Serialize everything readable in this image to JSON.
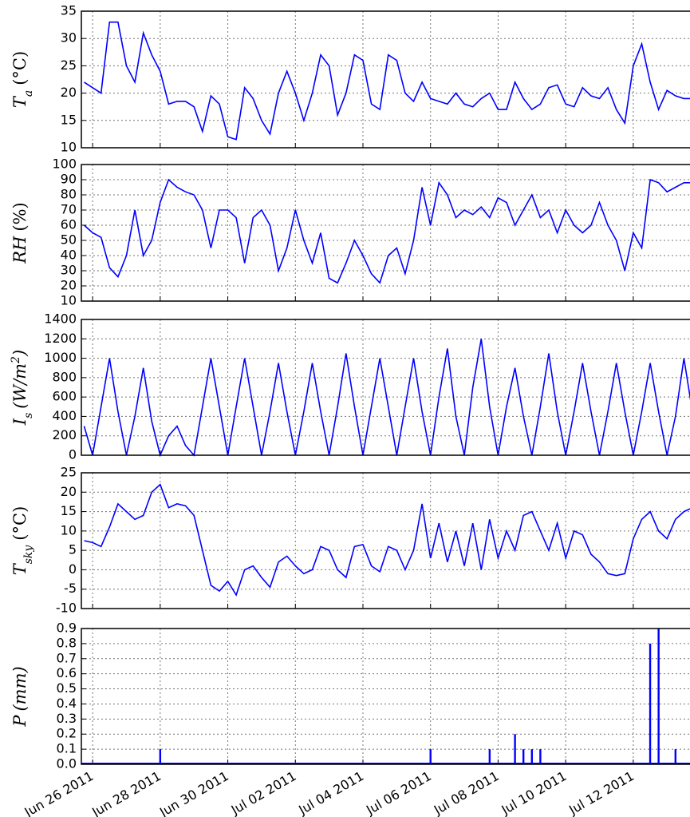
{
  "chart_data": [
    {
      "type": "line",
      "color": "#0000ff",
      "grid": true,
      "ylabel": [
        {
          "text": "T",
          "style": "base"
        },
        {
          "text": "a",
          "style": "sub"
        },
        {
          "text": "(°C)",
          "style": "unit"
        }
      ],
      "ylim": [
        10,
        35
      ],
      "yticks": [
        10,
        15,
        20,
        25,
        30,
        35
      ],
      "values": [
        22,
        21,
        20,
        33,
        33,
        25,
        22,
        31,
        27,
        24,
        18,
        18.5,
        18.5,
        17.5,
        13,
        19.5,
        18,
        12,
        11.5,
        21,
        19,
        15,
        12.5,
        20,
        24,
        20,
        15,
        20,
        27,
        25,
        16,
        20,
        27,
        26,
        18,
        17,
        27,
        26,
        20,
        18.5,
        22,
        19,
        18.5,
        18,
        20,
        18,
        17.5,
        19,
        20,
        17,
        17,
        22,
        19,
        17,
        18,
        21,
        21.5,
        18,
        17.5,
        21,
        19.5,
        19,
        21,
        17,
        14.5,
        25,
        29,
        22,
        17,
        20.5,
        19.5,
        19,
        19
      ]
    },
    {
      "type": "line",
      "color": "#0000ff",
      "grid": true,
      "ylabel": [
        {
          "text": "RH",
          "style": "base"
        },
        {
          "text": "(%)",
          "style": "unit"
        }
      ],
      "ylim": [
        10,
        100
      ],
      "yticks": [
        10,
        20,
        30,
        40,
        50,
        60,
        70,
        80,
        90,
        100
      ],
      "values": [
        60,
        55,
        52,
        32,
        26,
        40,
        70,
        40,
        50,
        75,
        90,
        85,
        82,
        80,
        70,
        45,
        70,
        70,
        65,
        35,
        65,
        70,
        60,
        30,
        45,
        70,
        50,
        35,
        55,
        25,
        22,
        35,
        50,
        40,
        28,
        22,
        40,
        45,
        28,
        50,
        85,
        60,
        88,
        80,
        65,
        70,
        67,
        72,
        65,
        78,
        75,
        60,
        70,
        80,
        65,
        70,
        55,
        70,
        60,
        55,
        60,
        75,
        60,
        50,
        30,
        55,
        45,
        90,
        88,
        82,
        85,
        88,
        88
      ]
    },
    {
      "type": "line",
      "color": "#0000ff",
      "grid": true,
      "ylabel": [
        {
          "text": "I",
          "style": "base"
        },
        {
          "text": "s",
          "style": "sub"
        },
        {
          "text": "(W/m",
          "style": "base"
        },
        {
          "text": "2",
          "style": "sup"
        },
        {
          "text": ")",
          "style": "base"
        }
      ],
      "ylim": [
        0,
        1400
      ],
      "yticks": [
        0,
        200,
        400,
        600,
        800,
        1000,
        1200,
        1400
      ],
      "values": [
        300,
        0,
        500,
        1000,
        450,
        0,
        400,
        900,
        350,
        0,
        200,
        300,
        100,
        0,
        500,
        1000,
        500,
        0,
        500,
        1000,
        500,
        0,
        450,
        950,
        450,
        0,
        450,
        950,
        450,
        0,
        500,
        1050,
        500,
        0,
        500,
        1000,
        500,
        0,
        500,
        1000,
        450,
        0,
        600,
        1100,
        400,
        0,
        700,
        1200,
        500,
        0,
        500,
        900,
        400,
        0,
        500,
        1050,
        450,
        0,
        450,
        950,
        450,
        0,
        450,
        950,
        450,
        0,
        450,
        950,
        450,
        0,
        400,
        1000,
        450
      ]
    },
    {
      "type": "line",
      "color": "#0000ff",
      "grid": true,
      "ylabel": [
        {
          "text": "T",
          "style": "base"
        },
        {
          "text": "sky",
          "style": "sub"
        },
        {
          "text": "(°C)",
          "style": "unit"
        }
      ],
      "ylim": [
        -10,
        25
      ],
      "yticks": [
        -10,
        -5,
        0,
        5,
        10,
        15,
        20,
        25
      ],
      "values": [
        7.5,
        7,
        6,
        11,
        17,
        15,
        13,
        14,
        20,
        22,
        16,
        17,
        16.5,
        14,
        5,
        -4,
        -5.5,
        -3,
        -6.5,
        0,
        1,
        -2,
        -4.5,
        2,
        3.5,
        1,
        -1,
        0,
        6,
        5,
        0,
        -2,
        6,
        6.5,
        1,
        -0.5,
        6,
        5,
        0,
        5,
        17,
        3,
        12,
        2,
        10,
        1,
        12,
        0,
        13,
        3,
        10,
        5,
        14,
        15,
        10,
        5,
        12,
        3,
        10,
        9,
        4,
        2,
        -1,
        -1.5,
        -1,
        8,
        13,
        15,
        10,
        8,
        13,
        15,
        16
      ]
    },
    {
      "type": "bar",
      "color": "#0000ff",
      "grid": true,
      "ylabel": [
        {
          "text": "P",
          "style": "base"
        },
        {
          "text": "(mm)",
          "style": "base"
        }
      ],
      "ylim": [
        0,
        0.9
      ],
      "yticks": [
        {
          "value": 0,
          "label": "0.0"
        },
        0.1,
        0.2,
        0.3,
        0.4,
        0.5,
        0.6,
        0.7,
        0.8,
        0.9
      ],
      "xlim": [
        "2011-06-25 16:00",
        "2011-07-13 18:00"
      ],
      "xticks": [
        {
          "value": "2011-06-26 00:00",
          "label": "Jun 26 2011"
        },
        {
          "value": "2011-06-28 00:00",
          "label": "Jun 28 2011"
        },
        {
          "value": "2011-06-30 00:00",
          "label": "Jun 30 2011"
        },
        {
          "value": "2011-07-02 00:00",
          "label": "Jul 02 2011"
        },
        {
          "value": "2011-07-04 00:00",
          "label": "Jul 04 2011"
        },
        {
          "value": "2011-07-06 00:00",
          "label": "Jul 06 2011"
        },
        {
          "value": "2011-07-08 00:00",
          "label": "Jul 08 2011"
        },
        {
          "value": "2011-07-10 00:00",
          "label": "Jul 10 2011"
        },
        {
          "value": "2011-07-12 00:00",
          "label": "Jul 12 2011"
        }
      ],
      "x": [
        "2011-06-25 18:00",
        "2011-06-26 00:00",
        "2011-06-26 06:00",
        "2011-06-26 12:00",
        "2011-06-26 18:00",
        "2011-06-27 00:00",
        "2011-06-27 06:00",
        "2011-06-27 12:00",
        "2011-06-27 18:00",
        "2011-06-28 00:00",
        "2011-06-28 06:00",
        "2011-06-28 12:00",
        "2011-06-28 18:00",
        "2011-06-29 00:00",
        "2011-06-29 06:00",
        "2011-06-29 12:00",
        "2011-06-29 18:00",
        "2011-06-30 00:00",
        "2011-06-30 06:00",
        "2011-06-30 12:00",
        "2011-06-30 18:00",
        "2011-07-01 00:00",
        "2011-07-01 06:00",
        "2011-07-01 12:00",
        "2011-07-01 18:00",
        "2011-07-02 00:00",
        "2011-07-02 06:00",
        "2011-07-02 12:00",
        "2011-07-02 18:00",
        "2011-07-03 00:00",
        "2011-07-03 06:00",
        "2011-07-03 12:00",
        "2011-07-03 18:00",
        "2011-07-04 00:00",
        "2011-07-04 06:00",
        "2011-07-04 12:00",
        "2011-07-04 18:00",
        "2011-07-05 00:00",
        "2011-07-05 06:00",
        "2011-07-05 12:00",
        "2011-07-05 18:00",
        "2011-07-06 00:00",
        "2011-07-06 06:00",
        "2011-07-06 12:00",
        "2011-07-06 18:00",
        "2011-07-07 00:00",
        "2011-07-07 06:00",
        "2011-07-07 12:00",
        "2011-07-07 18:00",
        "2011-07-08 00:00",
        "2011-07-08 06:00",
        "2011-07-08 12:00",
        "2011-07-08 18:00",
        "2011-07-09 00:00",
        "2011-07-09 06:00",
        "2011-07-09 12:00",
        "2011-07-09 18:00",
        "2011-07-10 00:00",
        "2011-07-10 06:00",
        "2011-07-10 12:00",
        "2011-07-10 18:00",
        "2011-07-11 00:00",
        "2011-07-11 06:00",
        "2011-07-11 12:00",
        "2011-07-11 18:00",
        "2011-07-12 00:00",
        "2011-07-12 06:00",
        "2011-07-12 12:00",
        "2011-07-12 18:00",
        "2011-07-13 00:00",
        "2011-07-13 06:00",
        "2011-07-13 12:00",
        "2011-07-13 18:00"
      ],
      "values": [
        0,
        0,
        0,
        0,
        0,
        0,
        0,
        0,
        0,
        0.1,
        0,
        0,
        0,
        0,
        0,
        0,
        0,
        0,
        0,
        0,
        0,
        0,
        0,
        0,
        0,
        0,
        0,
        0,
        0,
        0,
        0,
        0,
        0,
        0,
        0,
        0,
        0,
        0,
        0,
        0,
        0,
        0.1,
        0,
        0,
        0,
        0,
        0,
        0,
        0.1,
        0,
        0,
        0.2,
        0.1,
        0.1,
        0.1,
        0,
        0,
        0,
        0,
        0,
        0,
        0,
        0,
        0,
        0,
        0,
        0,
        0.8,
        0.9,
        0,
        0.1,
        0,
        0
      ]
    }
  ]
}
